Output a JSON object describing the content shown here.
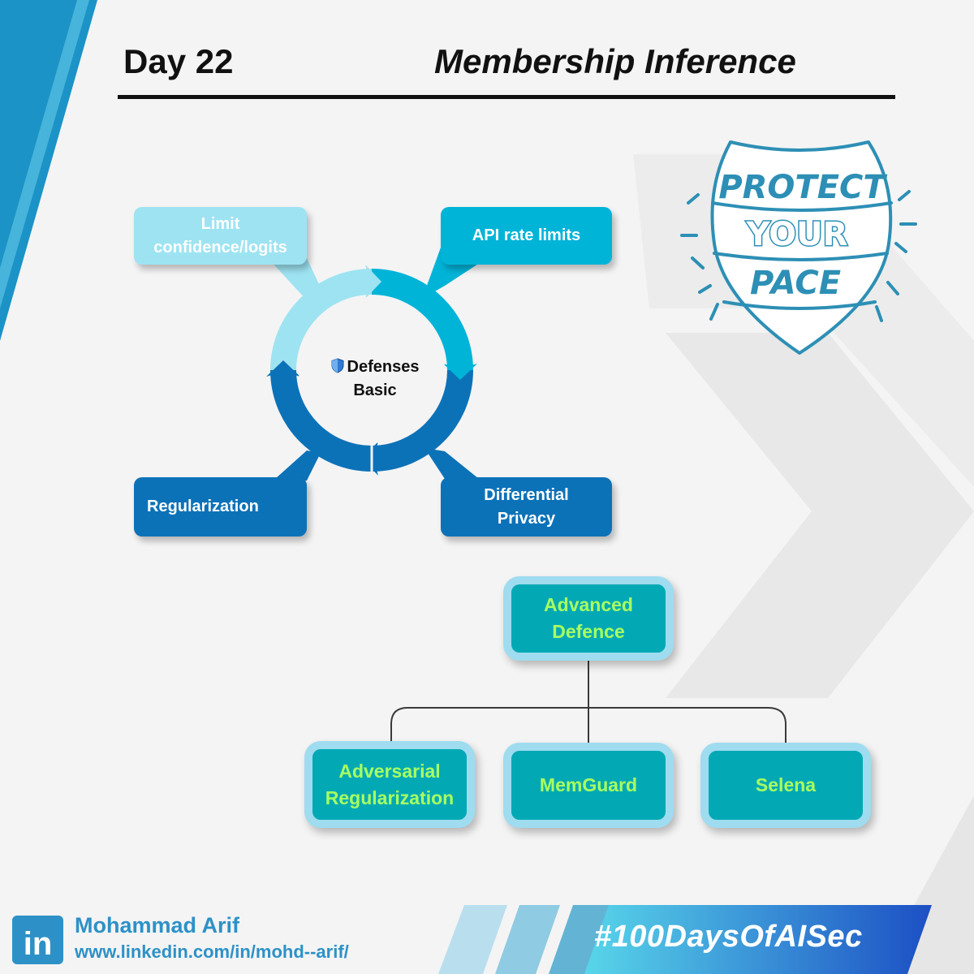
{
  "header": {
    "day": "Day 22",
    "title": "Membership Inference"
  },
  "cycle": {
    "center": "Defenses Basic",
    "items": [
      "Limit confidence/logits",
      "API rate limits",
      "Regularization",
      "Differential Privacy"
    ]
  },
  "badge": {
    "line1": "PROTECT",
    "line2": "YOUR",
    "line3": "PACE"
  },
  "tree": {
    "root": "Advanced Defence",
    "children": [
      "Adversarial Regularization",
      "MemGuard",
      "Selena"
    ]
  },
  "footer": {
    "logo": "in",
    "name": "Mohammad Arif",
    "url": "www.linkedin.com/in/mohd--arif/",
    "hashtag": "#100DaysOfAISec"
  },
  "colors": {
    "light": "#9ee3f2",
    "mid": "#00b4d8",
    "dark": "#0c72b8",
    "teal": "#02a9b5",
    "green_text": "#a8ff60",
    "link_blue": "#2d91c7"
  }
}
